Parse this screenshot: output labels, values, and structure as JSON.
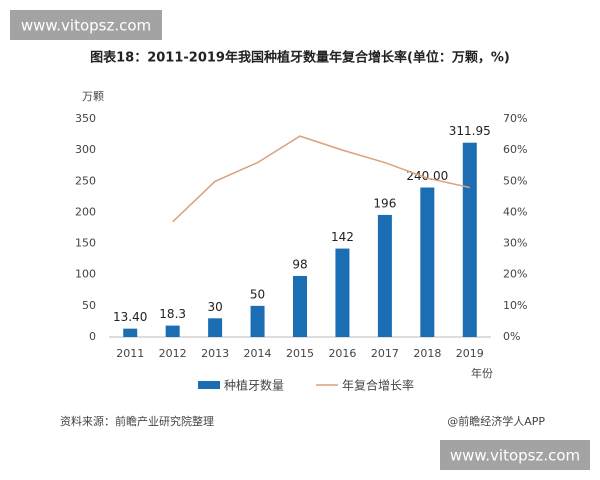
{
  "chart_data": {
    "type": "bar",
    "title": "图表18：2011-2019年我国种植牙数量年复合增长率(单位：万颗，%)",
    "y_label": "万颗",
    "x_label": "年份",
    "categories": [
      "2011",
      "2012",
      "2013",
      "2014",
      "2015",
      "2016",
      "2017",
      "2018",
      "2019"
    ],
    "series": [
      {
        "name": "种植牙数量",
        "type": "bar",
        "color": "#1b6eb4",
        "values": [
          13.4,
          18.3,
          30,
          50,
          98,
          142,
          196,
          240,
          311.95
        ],
        "value_labels": [
          "13.40",
          "18.3",
          "30",
          "50",
          "98",
          "142",
          "196",
          "240.00",
          "311.95"
        ]
      },
      {
        "name": "年复合增长率",
        "type": "line",
        "axis": "y2",
        "color": "#d9a27c",
        "values": [
          null,
          37,
          50,
          56,
          64.5,
          60,
          56,
          51,
          48
        ]
      }
    ],
    "ylim": [
      0,
      350
    ],
    "yticks": [
      0,
      50,
      100,
      150,
      200,
      250,
      300,
      350
    ],
    "y2lim": [
      0,
      70
    ],
    "y2ticks": [
      {
        "value": 0,
        "label": "0%"
      },
      {
        "value": 10,
        "label": "10%"
      },
      {
        "value": 20,
        "label": "20%"
      },
      {
        "value": 30,
        "label": "30%"
      },
      {
        "value": 40,
        "label": "40%"
      },
      {
        "value": 50,
        "label": "50%"
      },
      {
        "value": 60,
        "label": "60%"
      },
      {
        "value": 70,
        "label": "70%"
      }
    ],
    "grid": false,
    "legend": "bottom",
    "source": "资料来源：前瞻产业研究院整理",
    "credit": "@前瞻经济学人APP"
  },
  "watermarks": [
    "www.vitopsz.com",
    "www.vitopsz.com"
  ]
}
